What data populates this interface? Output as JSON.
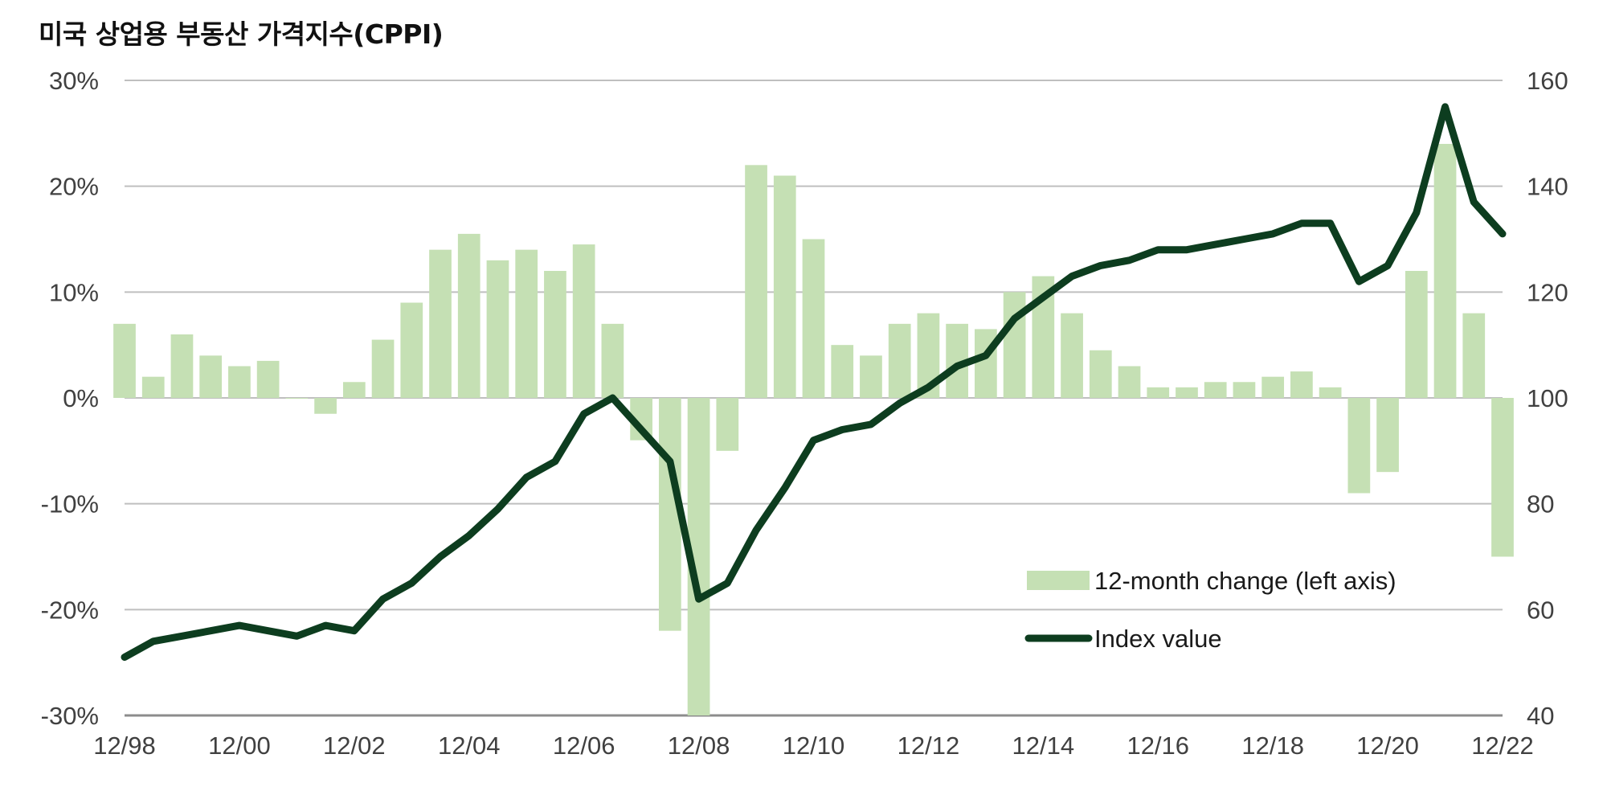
{
  "chart_data": {
    "type": "bar+line",
    "title": "미국 상업용 부동산 가격지수(CPPI)",
    "x_tick_labels": [
      "12/98",
      "12/00",
      "12/02",
      "12/04",
      "12/06",
      "12/08",
      "12/10",
      "12/12",
      "12/14",
      "12/16",
      "12/18",
      "12/20",
      "12/22"
    ],
    "left_axis": {
      "ylim": [
        -30,
        30
      ],
      "tick_labels": [
        "30%",
        "20%",
        "10%",
        "0%",
        "-10%",
        "-20%",
        "-30%"
      ]
    },
    "right_axis": {
      "ylim": [
        40,
        160
      ],
      "tick_labels": [
        "160",
        "140",
        "120",
        "100",
        "80",
        "60",
        "40"
      ]
    },
    "grid": true,
    "legend_position": "bottom-right",
    "series": [
      {
        "name": "12-month change (left axis)",
        "kind": "bar",
        "axis": "left",
        "color": "#c5e0b4",
        "x": [
          "12/98",
          "06/99",
          "12/99",
          "06/00",
          "12/00",
          "06/01",
          "12/01",
          "06/02",
          "12/02",
          "06/03",
          "12/03",
          "06/04",
          "12/04",
          "06/05",
          "12/05",
          "06/06",
          "12/06",
          "06/07",
          "12/07",
          "06/08",
          "12/08",
          "06/09",
          "12/09",
          "06/10",
          "12/10",
          "06/11",
          "12/11",
          "06/12",
          "12/12",
          "06/13",
          "12/13",
          "06/14",
          "12/14",
          "06/15",
          "12/15",
          "06/16",
          "12/16",
          "06/17",
          "12/17",
          "06/18",
          "12/18",
          "06/19",
          "12/19",
          "06/20",
          "12/20",
          "06/21",
          "12/21",
          "06/22",
          "12/22"
        ],
        "values": [
          7,
          2,
          6,
          4,
          3,
          3.5,
          0,
          -1.5,
          1.5,
          5.5,
          9,
          14,
          15.5,
          13,
          14,
          12,
          14.5,
          7,
          -4,
          -22,
          -30,
          -5,
          22,
          21,
          15,
          5,
          4,
          7,
          8,
          7,
          6.5,
          10,
          11.5,
          8,
          4.5,
          3,
          1,
          1,
          1.5,
          1.5,
          2,
          2.5,
          1,
          -9,
          -7,
          12,
          24,
          8,
          -15
        ]
      },
      {
        "name": "Index value",
        "kind": "line",
        "axis": "right",
        "color": "#0d3d1f",
        "x": [
          "12/98",
          "06/99",
          "12/99",
          "06/00",
          "12/00",
          "06/01",
          "12/01",
          "06/02",
          "12/02",
          "06/03",
          "12/03",
          "06/04",
          "12/04",
          "06/05",
          "12/05",
          "06/06",
          "12/06",
          "06/07",
          "12/07",
          "06/08",
          "12/08",
          "06/09",
          "12/09",
          "06/10",
          "12/10",
          "06/11",
          "12/11",
          "06/12",
          "12/12",
          "06/13",
          "12/13",
          "06/14",
          "12/14",
          "06/15",
          "12/15",
          "06/16",
          "12/16",
          "06/17",
          "12/17",
          "06/18",
          "12/18",
          "06/19",
          "12/19",
          "06/20",
          "12/20",
          "06/21",
          "12/21",
          "06/22",
          "12/22"
        ],
        "values": [
          51,
          54,
          55,
          56,
          57,
          56,
          55,
          57,
          56,
          62,
          65,
          70,
          74,
          79,
          85,
          88,
          97,
          100,
          94,
          88,
          62,
          65,
          75,
          83,
          92,
          94,
          95,
          99,
          102,
          106,
          108,
          115,
          119,
          123,
          125,
          126,
          128,
          128,
          129,
          130,
          131,
          133,
          133,
          122,
          125,
          135,
          155,
          137,
          131
        ]
      }
    ]
  }
}
